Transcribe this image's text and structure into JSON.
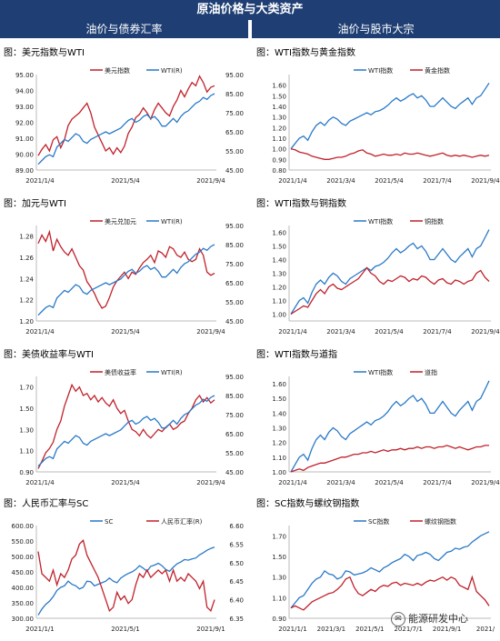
{
  "page": {
    "title": "原油价格与大类资产",
    "left_header": "油价与债券汇率",
    "right_header": "油价与股市大宗",
    "watermark": "能源研发中心",
    "watermark_icon": "wechat-icon"
  },
  "colors": {
    "header_bg": "#1f3f74",
    "red": "#c0212b",
    "blue": "#2979c8"
  },
  "chart_data": [
    {
      "type": "line",
      "title": "图：美元指数与WTI",
      "xticks": [
        "2021/1/4",
        "2021/5/4",
        "2021/9/4"
      ],
      "left_ylim": [
        89,
        95
      ],
      "left_ticks": [
        "95.00",
        "94.00",
        "93.00",
        "92.00",
        "91.00",
        "90.00",
        "89.00"
      ],
      "right_ylim": [
        45,
        95
      ],
      "right_ticks": [
        "95.00",
        "85.00",
        "75.00",
        "65.00",
        "55.00",
        "45.00"
      ],
      "series": [
        {
          "name": "美元指数",
          "axis": "left",
          "color": "#c0212b",
          "values": [
            89.9,
            90.3,
            90.6,
            90.2,
            90.9,
            91.1,
            90.4,
            90.9,
            91.8,
            92.2,
            92.4,
            92.6,
            92.9,
            93.2,
            92.6,
            91.7,
            91.2,
            90.7,
            90.2,
            90.4,
            90.0,
            90.4,
            90.1,
            90.5,
            91.3,
            91.7,
            92.3,
            92.5,
            92.9,
            92.6,
            92.2,
            92.8,
            93.2,
            92.9,
            92.6,
            92.4,
            93.0,
            93.4,
            94.0,
            93.6,
            94.1,
            94.5,
            94.3,
            94.9,
            94.5,
            93.9,
            94.2,
            94.3
          ]
        },
        {
          "name": "WTI(R)",
          "axis": "right",
          "color": "#2979c8",
          "values": [
            48,
            50,
            52,
            53,
            52,
            57,
            59,
            61,
            60,
            62,
            64,
            63,
            60,
            59,
            61,
            62,
            63,
            64,
            65,
            64,
            65,
            66,
            67,
            69,
            71,
            72,
            70,
            71,
            73,
            74,
            72,
            73,
            71,
            68,
            68,
            70,
            72,
            70,
            73,
            75,
            76,
            78,
            80,
            81,
            83,
            82,
            84,
            85
          ]
        }
      ]
    },
    {
      "type": "line",
      "title": "图：加元与WTI",
      "xticks": [
        "2021/1/4",
        "2021/5/4",
        "2021/9/4"
      ],
      "left_ylim": [
        1.2,
        1.29
      ],
      "left_ticks": [
        "1.28",
        "1.26",
        "1.24",
        "1.22",
        "1.20"
      ],
      "right_ylim": [
        45,
        95
      ],
      "right_ticks": [
        "95.00",
        "85.00",
        "75.00",
        "65.00",
        "55.00",
        "45.00"
      ],
      "series": [
        {
          "name": "美元兑加元",
          "axis": "left",
          "color": "#c0212b",
          "values": [
            1.273,
            1.281,
            1.275,
            1.284,
            1.266,
            1.277,
            1.27,
            1.265,
            1.262,
            1.268,
            1.26,
            1.252,
            1.248,
            1.237,
            1.232,
            1.226,
            1.218,
            1.212,
            1.214,
            1.222,
            1.232,
            1.238,
            1.242,
            1.246,
            1.24,
            1.246,
            1.244,
            1.25,
            1.255,
            1.258,
            1.262,
            1.255,
            1.266,
            1.264,
            1.26,
            1.27,
            1.268,
            1.262,
            1.26,
            1.265,
            1.258,
            1.256,
            1.258,
            1.268,
            1.262,
            1.246,
            1.243,
            1.245
          ]
        },
        {
          "name": "WTI(R)",
          "axis": "right",
          "color": "#2979c8",
          "values": [
            48,
            50,
            52,
            53,
            52,
            57,
            59,
            61,
            60,
            62,
            64,
            63,
            60,
            59,
            61,
            62,
            63,
            64,
            65,
            64,
            65,
            66,
            67,
            69,
            71,
            72,
            70,
            71,
            73,
            74,
            72,
            73,
            71,
            68,
            68,
            70,
            72,
            70,
            73,
            75,
            76,
            78,
            80,
            81,
            83,
            82,
            84,
            85
          ]
        }
      ]
    },
    {
      "type": "line",
      "title": "图：美债收益率与WTI",
      "xticks": [
        "2021/1/4",
        "2021/5/4",
        "2021/9/4"
      ],
      "left_ylim": [
        0.9,
        1.8
      ],
      "left_ticks": [
        "1.70",
        "1.50",
        "1.30",
        "1.10",
        "0.90"
      ],
      "right_ylim": [
        45,
        95
      ],
      "right_ticks": [
        "95.00",
        "85.00",
        "75.00",
        "65.00",
        "55.00",
        "45.00"
      ],
      "series": [
        {
          "name": "美债收益率",
          "axis": "left",
          "color": "#c0212b",
          "values": [
            0.93,
            1.0,
            1.08,
            1.12,
            1.18,
            1.3,
            1.38,
            1.52,
            1.62,
            1.72,
            1.66,
            1.7,
            1.62,
            1.64,
            1.58,
            1.62,
            1.56,
            1.6,
            1.55,
            1.52,
            1.58,
            1.5,
            1.45,
            1.48,
            1.38,
            1.3,
            1.28,
            1.24,
            1.3,
            1.25,
            1.22,
            1.26,
            1.3,
            1.28,
            1.32,
            1.35,
            1.3,
            1.32,
            1.36,
            1.38,
            1.45,
            1.5,
            1.58,
            1.62,
            1.56,
            1.6,
            1.55,
            1.58
          ]
        },
        {
          "name": "WTI(R)",
          "axis": "right",
          "color": "#2979c8",
          "values": [
            48,
            50,
            52,
            53,
            52,
            57,
            59,
            61,
            60,
            62,
            64,
            63,
            60,
            59,
            61,
            62,
            63,
            64,
            65,
            64,
            65,
            66,
            67,
            69,
            71,
            72,
            70,
            71,
            73,
            74,
            72,
            73,
            71,
            68,
            68,
            70,
            72,
            70,
            73,
            75,
            76,
            78,
            80,
            81,
            83,
            82,
            84,
            85
          ]
        }
      ]
    },
    {
      "type": "line",
      "title": "图：人民币汇率与SC",
      "xticks": [
        "2021/1/1",
        "2021/5/1",
        "2021/9/1"
      ],
      "left_ylim": [
        300,
        600
      ],
      "left_ticks": [
        "600.00",
        "550.00",
        "500.00",
        "450.00",
        "400.00",
        "350.00",
        "300.00"
      ],
      "right_ylim": [
        6.35,
        6.6
      ],
      "right_ticks": [
        "6.60",
        "6.55",
        "6.50",
        "6.45",
        "6.40",
        "6.35"
      ],
      "series": [
        {
          "name": "SC",
          "axis": "left",
          "color": "#2979c8",
          "values": [
            310,
            330,
            345,
            355,
            370,
            390,
            400,
            405,
            420,
            410,
            405,
            395,
            400,
            420,
            418,
            405,
            410,
            415,
            420,
            430,
            420,
            415,
            430,
            438,
            445,
            450,
            458,
            470,
            462,
            452,
            468,
            472,
            478,
            470,
            458,
            452,
            465,
            476,
            482,
            490,
            488,
            492,
            495,
            505,
            512,
            520,
            526,
            530
          ]
        },
        {
          "name": "人民币汇率(R)",
          "axis": "right",
          "color": "#c0212b",
          "values": [
            6.53,
            6.47,
            6.46,
            6.45,
            6.48,
            6.44,
            6.47,
            6.46,
            6.48,
            6.51,
            6.52,
            6.55,
            6.56,
            6.52,
            6.5,
            6.48,
            6.46,
            6.43,
            6.4,
            6.37,
            6.38,
            6.42,
            6.4,
            6.41,
            6.39,
            6.4,
            6.44,
            6.47,
            6.46,
            6.48,
            6.46,
            6.47,
            6.48,
            6.47,
            6.48,
            6.45,
            6.48,
            6.45,
            6.46,
            6.45,
            6.47,
            6.46,
            6.45,
            6.43,
            6.45,
            6.38,
            6.37,
            6.4
          ]
        }
      ]
    },
    {
      "type": "line",
      "title": "图：WTI指数与黄金指数",
      "xticks": [
        "2021/1/4",
        "2021/3/4",
        "2021/5/4",
        "2021/7/4",
        "2021/9/4"
      ],
      "left_ylim": [
        0.8,
        1.7
      ],
      "left_ticks": [
        "1.60",
        "1.50",
        "1.40",
        "1.30",
        "1.20",
        "1.10",
        "1.00",
        "0.90",
        "0.80"
      ],
      "series": [
        {
          "name": "WTI指数",
          "axis": "left",
          "color": "#2979c8",
          "values": [
            1.0,
            1.05,
            1.1,
            1.12,
            1.08,
            1.16,
            1.22,
            1.25,
            1.22,
            1.27,
            1.3,
            1.28,
            1.24,
            1.22,
            1.26,
            1.28,
            1.3,
            1.32,
            1.34,
            1.32,
            1.35,
            1.36,
            1.38,
            1.41,
            1.45,
            1.48,
            1.45,
            1.47,
            1.5,
            1.52,
            1.48,
            1.5,
            1.46,
            1.4,
            1.4,
            1.44,
            1.48,
            1.44,
            1.4,
            1.38,
            1.42,
            1.45,
            1.48,
            1.42,
            1.48,
            1.5,
            1.56,
            1.62
          ]
        },
        {
          "name": "黄金指数",
          "axis": "left",
          "color": "#c0212b",
          "values": [
            1.0,
            0.99,
            0.97,
            0.96,
            0.95,
            0.93,
            0.92,
            0.91,
            0.9,
            0.9,
            0.91,
            0.92,
            0.92,
            0.93,
            0.95,
            0.96,
            0.98,
            0.99,
            0.96,
            0.95,
            0.93,
            0.94,
            0.95,
            0.94,
            0.94,
            0.95,
            0.94,
            0.96,
            0.95,
            0.95,
            0.96,
            0.95,
            0.94,
            0.93,
            0.94,
            0.95,
            0.96,
            0.94,
            0.93,
            0.94,
            0.93,
            0.94,
            0.93,
            0.92,
            0.93,
            0.94,
            0.93,
            0.94
          ]
        }
      ]
    },
    {
      "type": "line",
      "title": "图：WTI指数与铜指数",
      "xticks": [
        "2021/1/4",
        "2021/3/4",
        "2021/5/4",
        "2021/7/4",
        "2021/9/4"
      ],
      "left_ylim": [
        0.95,
        1.65
      ],
      "left_ticks": [
        "1.60",
        "1.50",
        "1.40",
        "1.30",
        "1.20",
        "1.10",
        "1.00"
      ],
      "series": [
        {
          "name": "WTI指数",
          "axis": "left",
          "color": "#2979c8",
          "values": [
            1.0,
            1.05,
            1.1,
            1.12,
            1.08,
            1.16,
            1.22,
            1.25,
            1.22,
            1.27,
            1.3,
            1.28,
            1.24,
            1.22,
            1.26,
            1.28,
            1.3,
            1.32,
            1.34,
            1.32,
            1.35,
            1.36,
            1.38,
            1.41,
            1.45,
            1.48,
            1.45,
            1.47,
            1.5,
            1.52,
            1.48,
            1.5,
            1.46,
            1.4,
            1.4,
            1.44,
            1.48,
            1.44,
            1.4,
            1.38,
            1.42,
            1.45,
            1.48,
            1.42,
            1.48,
            1.5,
            1.56,
            1.62
          ]
        },
        {
          "name": "铜指数",
          "axis": "left",
          "color": "#c0212b",
          "values": [
            1.0,
            1.02,
            1.04,
            1.06,
            1.05,
            1.1,
            1.15,
            1.18,
            1.15,
            1.2,
            1.22,
            1.19,
            1.18,
            1.2,
            1.22,
            1.24,
            1.26,
            1.3,
            1.34,
            1.3,
            1.28,
            1.24,
            1.22,
            1.25,
            1.24,
            1.26,
            1.28,
            1.27,
            1.24,
            1.26,
            1.25,
            1.28,
            1.27,
            1.24,
            1.22,
            1.25,
            1.26,
            1.23,
            1.22,
            1.25,
            1.24,
            1.22,
            1.24,
            1.25,
            1.3,
            1.32,
            1.27,
            1.24
          ]
        }
      ]
    },
    {
      "type": "line",
      "title": "图：WTI指数与道指",
      "xticks": [
        "2021/1/4",
        "2021/3/4",
        "2021/5/4",
        "2021/7/4",
        "2021/9/4"
      ],
      "left_ylim": [
        1.0,
        1.65
      ],
      "left_ticks": [
        "1.60",
        "1.50",
        "1.40",
        "1.30",
        "1.20",
        "1.10",
        "1.00"
      ],
      "series": [
        {
          "name": "WTI指数",
          "axis": "left",
          "color": "#2979c8",
          "values": [
            1.0,
            1.05,
            1.1,
            1.12,
            1.08,
            1.16,
            1.22,
            1.25,
            1.22,
            1.27,
            1.3,
            1.28,
            1.24,
            1.22,
            1.26,
            1.28,
            1.3,
            1.32,
            1.34,
            1.32,
            1.35,
            1.36,
            1.38,
            1.41,
            1.45,
            1.48,
            1.45,
            1.47,
            1.5,
            1.52,
            1.48,
            1.5,
            1.46,
            1.4,
            1.4,
            1.44,
            1.48,
            1.44,
            1.4,
            1.38,
            1.42,
            1.45,
            1.48,
            1.42,
            1.48,
            1.5,
            1.56,
            1.62
          ]
        },
        {
          "name": "道指",
          "axis": "left",
          "color": "#c0212b",
          "values": [
            1.0,
            1.01,
            1.02,
            1.01,
            1.03,
            1.04,
            1.05,
            1.06,
            1.06,
            1.07,
            1.08,
            1.09,
            1.1,
            1.1,
            1.11,
            1.12,
            1.12,
            1.13,
            1.13,
            1.14,
            1.13,
            1.14,
            1.15,
            1.14,
            1.15,
            1.15,
            1.16,
            1.15,
            1.16,
            1.16,
            1.17,
            1.16,
            1.17,
            1.17,
            1.16,
            1.17,
            1.17,
            1.18,
            1.17,
            1.16,
            1.17,
            1.16,
            1.15,
            1.16,
            1.17,
            1.17,
            1.18,
            1.18
          ]
        }
      ]
    },
    {
      "type": "line",
      "title": "图：SC指数与螺纹钢指数",
      "xticks": [
        "2021/1/1",
        "2021/3/1",
        "2021/5/1",
        "2021/7/1",
        "2021/9/1",
        "2021/"
      ],
      "left_ylim": [
        0.9,
        1.8
      ],
      "left_ticks": [
        "1.70",
        "1.50",
        "1.30",
        "1.10",
        "0.90"
      ],
      "series": [
        {
          "name": "SC指数",
          "axis": "left",
          "color": "#2979c8",
          "values": [
            1.0,
            1.05,
            1.1,
            1.12,
            1.18,
            1.24,
            1.28,
            1.3,
            1.36,
            1.33,
            1.32,
            1.28,
            1.3,
            1.36,
            1.35,
            1.32,
            1.33,
            1.34,
            1.36,
            1.39,
            1.37,
            1.35,
            1.39,
            1.41,
            1.44,
            1.46,
            1.48,
            1.52,
            1.5,
            1.46,
            1.51,
            1.52,
            1.54,
            1.52,
            1.48,
            1.46,
            1.5,
            1.54,
            1.55,
            1.58,
            1.57,
            1.59,
            1.6,
            1.64,
            1.67,
            1.7,
            1.72,
            1.74
          ]
        },
        {
          "name": "螺纹钢指数",
          "axis": "left",
          "color": "#c0212b",
          "values": [
            1.0,
            1.02,
            1.0,
            0.98,
            1.02,
            1.06,
            1.08,
            1.1,
            1.12,
            1.14,
            1.15,
            1.18,
            1.22,
            1.28,
            1.3,
            1.2,
            1.14,
            1.12,
            1.15,
            1.18,
            1.16,
            1.2,
            1.22,
            1.21,
            1.24,
            1.25,
            1.22,
            1.24,
            1.23,
            1.22,
            1.24,
            1.22,
            1.25,
            1.27,
            1.26,
            1.28,
            1.3,
            1.27,
            1.3,
            1.28,
            1.22,
            1.2,
            1.18,
            1.3,
            1.16,
            1.12,
            1.08,
            1.02
          ]
        }
      ]
    }
  ]
}
